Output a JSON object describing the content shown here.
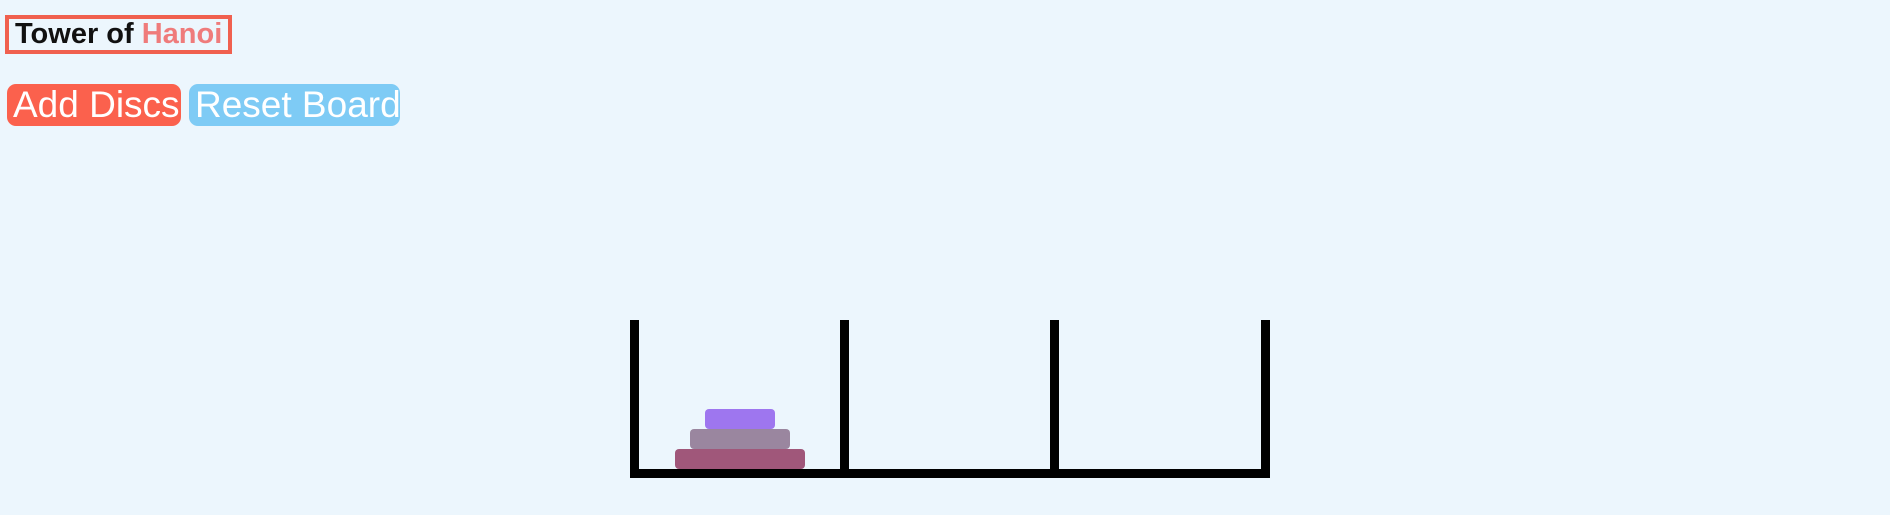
{
  "header": {
    "title_part1": "Tower of",
    "title_part2": "Hanoi"
  },
  "controls": {
    "add_discs_label": "Add Discs",
    "reset_board_label": "Reset Board"
  },
  "board": {
    "pegs": 3,
    "discs_on_peg": [
      3,
      0,
      0
    ],
    "disc_colors": [
      "#a0577a",
      "#9a869f",
      "#9e76ef"
    ]
  },
  "colors": {
    "background": "#ecf6fd",
    "title_border": "#f0604f",
    "title_accent": "#ef7b7b",
    "add_button": "#fb614d",
    "reset_button": "#7ecbf5",
    "board_lines": "#000000"
  }
}
